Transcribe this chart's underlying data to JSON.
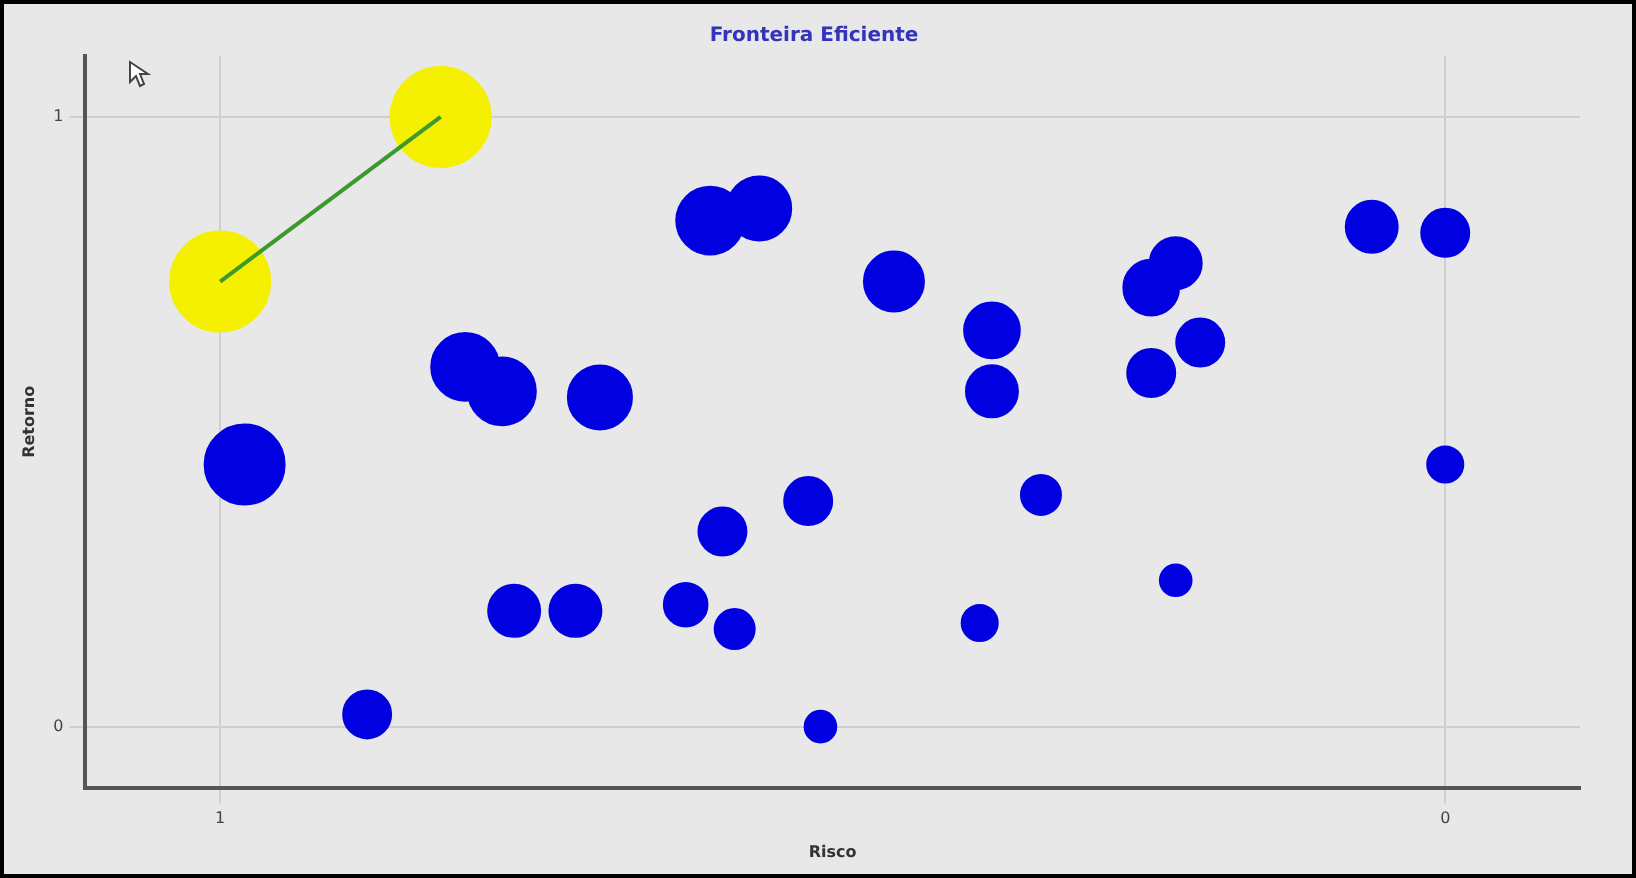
{
  "chart_data": {
    "type": "bubble",
    "title": "Fronteira Eficiente",
    "xlabel": "Risco",
    "ylabel": "Retorno",
    "xlim": [
      1.11,
      -0.11
    ],
    "xticks": [
      1,
      0
    ],
    "ylim": [
      -0.1,
      1.1
    ],
    "yticks": [
      0,
      1
    ],
    "grid": true,
    "series": [
      {
        "type": "bubble",
        "color": "#f5f000",
        "x": [
          1.0,
          0.82
        ],
        "values": [
          0.73,
          1.0
        ],
        "sizes": [
          1,
          1
        ]
      },
      {
        "type": "bubble",
        "color": "#0000e0",
        "x": [
          0.98,
          0.88,
          0.8,
          0.77,
          0.69,
          0.76,
          0.71,
          0.62,
          0.58,
          0.59,
          0.6,
          0.56,
          0.52,
          0.51,
          0.45,
          0.37,
          0.37,
          0.38,
          0.33,
          0.24,
          0.22,
          0.24,
          0.2,
          0.22,
          0.06,
          0.0,
          0.0
        ],
        "values": [
          0.43,
          0.02,
          0.59,
          0.55,
          0.54,
          0.19,
          0.19,
          0.2,
          0.16,
          0.32,
          0.83,
          0.85,
          0.37,
          0.0,
          0.73,
          0.65,
          0.55,
          0.17,
          0.38,
          0.72,
          0.76,
          0.58,
          0.63,
          0.24,
          0.82,
          0.81,
          0.43
        ],
        "sizes": [
          0.64,
          0.23,
          0.46,
          0.46,
          0.41,
          0.27,
          0.27,
          0.19,
          0.16,
          0.23,
          0.46,
          0.41,
          0.23,
          0.1,
          0.36,
          0.31,
          0.27,
          0.13,
          0.16,
          0.31,
          0.27,
          0.23,
          0.23,
          0.1,
          0.27,
          0.23,
          0.13
        ]
      },
      {
        "type": "line",
        "color": "#3a9a2a",
        "x": [
          1.0,
          0.82
        ],
        "values": [
          0.73,
          1.0
        ]
      }
    ]
  }
}
